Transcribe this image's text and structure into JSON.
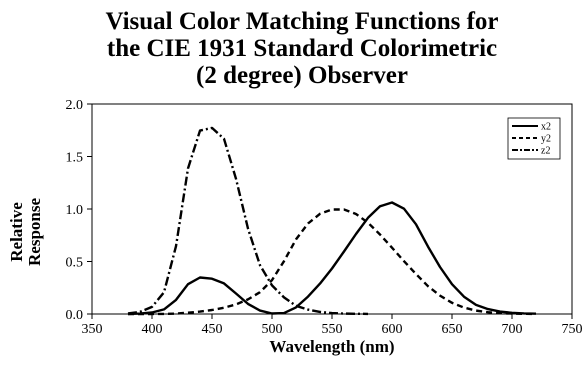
{
  "chart_data": {
    "type": "line",
    "title_lines": [
      "Visual Color Matching Functions for",
      "the CIE 1931 Standard Colorimetric",
      "(2 degree) Observer"
    ],
    "xlabel": "Wavelength  (nm)",
    "ylabel_lines": [
      "Relative",
      "Response"
    ],
    "xlim": [
      350,
      750
    ],
    "ylim": [
      0.0,
      2.0
    ],
    "xticks": [
      350,
      400,
      450,
      500,
      550,
      600,
      650,
      700,
      750
    ],
    "yticks": [
      0.0,
      0.5,
      1.0,
      1.5,
      2.0
    ],
    "ytick_labels": [
      "0.0",
      "0.5",
      "1.0",
      "1.5",
      "2.0"
    ],
    "grid": false,
    "legend_position": "top-right",
    "series": [
      {
        "name": "x2",
        "line_style": "solid",
        "x": [
          380,
          390,
          400,
          410,
          420,
          430,
          440,
          450,
          460,
          470,
          480,
          490,
          500,
          510,
          520,
          530,
          540,
          550,
          560,
          570,
          580,
          590,
          600,
          610,
          620,
          630,
          640,
          650,
          660,
          670,
          680,
          690,
          700,
          710,
          720
        ],
        "y": [
          0.001,
          0.004,
          0.014,
          0.044,
          0.134,
          0.284,
          0.348,
          0.336,
          0.291,
          0.195,
          0.096,
          0.032,
          0.005,
          0.009,
          0.063,
          0.166,
          0.29,
          0.433,
          0.595,
          0.762,
          0.916,
          1.026,
          1.062,
          1.003,
          0.854,
          0.642,
          0.448,
          0.284,
          0.165,
          0.087,
          0.047,
          0.023,
          0.011,
          0.006,
          0.003
        ]
      },
      {
        "name": "y2",
        "line_style": "dashed",
        "x": [
          380,
          390,
          400,
          410,
          420,
          430,
          440,
          450,
          460,
          470,
          480,
          490,
          500,
          510,
          520,
          530,
          540,
          550,
          560,
          570,
          580,
          590,
          600,
          610,
          620,
          630,
          640,
          650,
          660,
          670,
          680,
          690,
          700,
          710,
          720
        ],
        "y": [
          0.0,
          0.0,
          0.0,
          0.001,
          0.004,
          0.012,
          0.023,
          0.038,
          0.06,
          0.091,
          0.139,
          0.208,
          0.323,
          0.503,
          0.71,
          0.862,
          0.954,
          0.995,
          0.995,
          0.952,
          0.87,
          0.757,
          0.631,
          0.503,
          0.381,
          0.265,
          0.175,
          0.107,
          0.061,
          0.032,
          0.017,
          0.008,
          0.004,
          0.002,
          0.001
        ]
      },
      {
        "name": "z2",
        "line_style": "dash-dot",
        "x": [
          380,
          390,
          400,
          410,
          420,
          430,
          440,
          450,
          460,
          470,
          480,
          490,
          500,
          510,
          520,
          530,
          540,
          550,
          560,
          570,
          580
        ],
        "y": [
          0.006,
          0.02,
          0.068,
          0.207,
          0.646,
          1.386,
          1.747,
          1.772,
          1.669,
          1.288,
          0.813,
          0.465,
          0.272,
          0.158,
          0.078,
          0.042,
          0.02,
          0.009,
          0.004,
          0.002,
          0.001
        ]
      }
    ]
  }
}
